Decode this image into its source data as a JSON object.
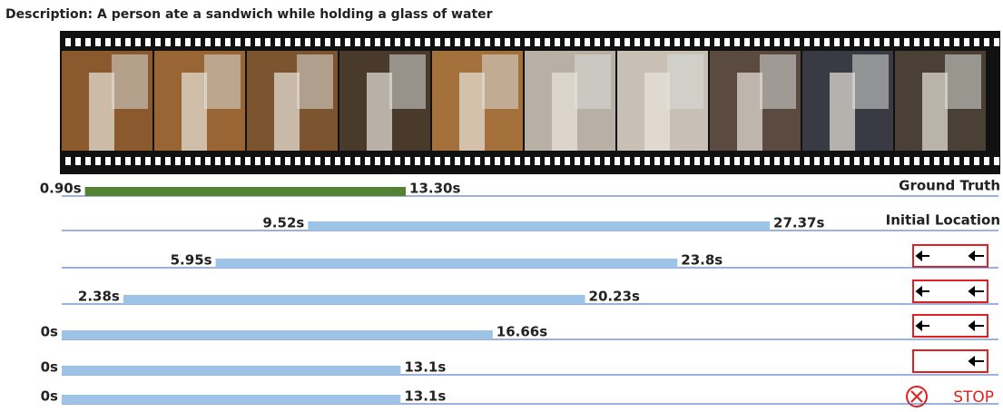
{
  "description": "Description: A person ate a sandwich while holding a glass of water",
  "rows": [
    {
      "start": {
        "value": 0.9,
        "label": "0.90s"
      },
      "end": {
        "value": 13.3,
        "label": "13.30s"
      },
      "tag": "Ground Truth"
    },
    {
      "start": {
        "value": 9.52,
        "label": "9.52s"
      },
      "end": {
        "value": 27.37,
        "label": "27.37s"
      },
      "tag": "Initial Location"
    },
    {
      "start": {
        "value": 5.95,
        "label": "5.95s"
      },
      "end": {
        "value": 23.8,
        "label": "23.8s"
      }
    },
    {
      "start": {
        "value": 2.38,
        "label": "2.38s"
      },
      "end": {
        "value": 20.23,
        "label": "20.23s"
      }
    },
    {
      "start": {
        "value": 0,
        "label": "0s"
      },
      "end": {
        "value": 16.66,
        "label": "16.66s"
      }
    },
    {
      "start": {
        "value": 0,
        "label": "0s"
      },
      "end": {
        "value": 13.1,
        "label": "13.1s"
      }
    },
    {
      "start": {
        "value": 0,
        "label": "0s"
      },
      "end": {
        "value": 13.1,
        "label": "13.1s"
      },
      "tag": "STOP"
    }
  ]
}
